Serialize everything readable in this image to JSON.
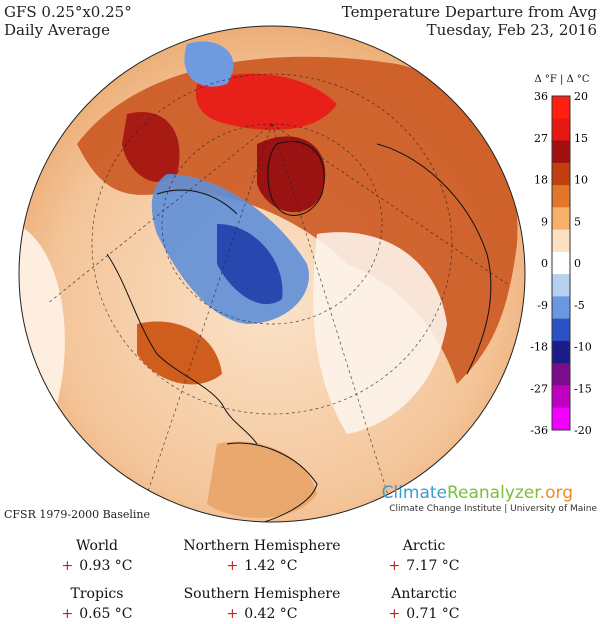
{
  "header": {
    "model": "GFS 0.25°x0.25°",
    "average": "Daily Average",
    "title": "Temperature Departure from Avg",
    "date": "Tuesday, Feb 23, 2016"
  },
  "legend": {
    "units_label": "Δ °F | Δ °C",
    "fahrenheit_ticks": [
      "36",
      "27",
      "18",
      "9",
      "0",
      "-9",
      "-18",
      "-27",
      "-36"
    ],
    "celsius_ticks": [
      "20",
      "15",
      "10",
      "5",
      "0",
      "-5",
      "-10",
      "-15",
      "-20"
    ],
    "colors": [
      "#f000ff",
      "#c000c0",
      "#7a0d8c",
      "#1b1b8a",
      "#2a52c4",
      "#6a98e0",
      "#b7d0f0",
      "#ffffff",
      "#fbe0c2",
      "#f6b06a",
      "#e2762a",
      "#c04010",
      "#a01010",
      "#e81810",
      "#ff2010"
    ]
  },
  "baseline": "CFSR 1979-2000 Baseline",
  "branding": {
    "name_part1": "Climate",
    "name_part2": "Reanalyzer",
    "name_part3": ".org",
    "subtitle": "Climate Change Institute | University of Maine",
    "color1": "#3b9bd4",
    "color2": "#7cbf3a",
    "color3": "#f08a1c"
  },
  "stats": [
    {
      "label": "World",
      "sign": "+",
      "value": "0.93 °C"
    },
    {
      "label": "Northern Hemisphere",
      "sign": "+",
      "value": "1.42 °C"
    },
    {
      "label": "Arctic",
      "sign": "+",
      "value": "7.17 °C"
    },
    {
      "label": "Tropics",
      "sign": "+",
      "value": "0.65 °C"
    },
    {
      "label": "Southern Hemisphere",
      "sign": "+",
      "value": "0.42 °C"
    },
    {
      "label": "Antarctic",
      "sign": "+",
      "value": "0.71 °C"
    }
  ]
}
